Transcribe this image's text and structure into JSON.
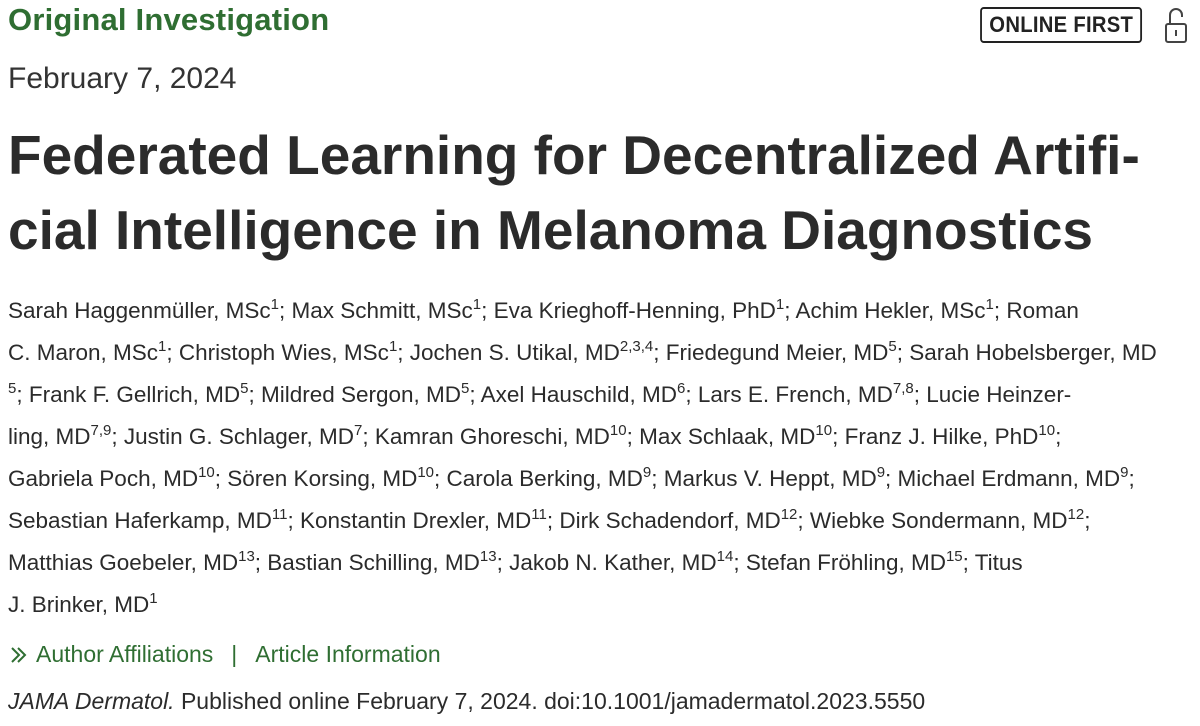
{
  "header": {
    "section_label": "Original Investigation",
    "badge": "ONLINE FIRST",
    "lock_icon": "open-lock-icon",
    "accent_color": "#2f6e32"
  },
  "publication_date": "February 7, 2024",
  "title": {
    "line1": "Federated Learning for Decentralized Artifi-",
    "line2": "cial Intelligence in Melanoma Diagnostics"
  },
  "authors": {
    "l1": {
      "a1": "Sarah Haggenmüller, MSc",
      "s1": "1",
      "a2": "; Max Schmitt, MSc",
      "s2": "1",
      "a3": "; Eva Krieghoff-Henning, PhD",
      "s3": "1",
      "a4": "; Achim Hekler, MSc",
      "s4": "1",
      "a5": "; Roman"
    },
    "l2": {
      "a1": "C. Maron, MSc",
      "s1": "1",
      "a2": "; Christoph Wies, MSc",
      "s2": "1",
      "a3": "; Jochen S. Utikal, MD",
      "s3": "2,3,4",
      "a4": "; Friedegund Meier, MD",
      "s4": "5",
      "a5": "; Sarah Hobelsberger, MD"
    },
    "l3": {
      "s0": "5",
      "a1": "; Frank F. Gellrich, MD",
      "s1": "5",
      "a2": "; Mildred Sergon, MD",
      "s2": "5",
      "a3": "; Axel Hauschild, MD",
      "s3": "6",
      "a4": "; Lars E. French, MD",
      "s4": "7,8",
      "a5": "; Lucie Heinzer-"
    },
    "l4": {
      "a1": "ling, MD",
      "s1": "7,9",
      "a2": "; Justin G. Schlager, MD",
      "s2": "7",
      "a3": "; Kamran Ghoreschi, MD",
      "s3": "10",
      "a4": "; Max Schlaak, MD",
      "s4": "10",
      "a5": "; Franz J. Hilke, PhD",
      "s5": "10",
      "a6": ";"
    },
    "l5": {
      "a1": "Gabriela Poch, MD",
      "s1": "10",
      "a2": "; Sören Korsing, MD",
      "s2": "10",
      "a3": "; Carola Berking, MD",
      "s3": "9",
      "a4": "; Markus V. Heppt, MD",
      "s4": "9",
      "a5": "; Michael Erdmann, MD",
      "s5": "9",
      "a6": ";"
    },
    "l6": {
      "a1": "Sebastian Haferkamp, MD",
      "s1": "11",
      "a2": "; Konstantin Drexler, MD",
      "s2": "11",
      "a3": "; Dirk Schadendorf, MD",
      "s3": "12",
      "a4": "; Wiebke Sondermann, MD",
      "s4": "12",
      "a5": ";"
    },
    "l7": {
      "a1": "Matthias Goebeler, MD",
      "s1": "13",
      "a2": "; Bastian Schilling, MD",
      "s2": "13",
      "a3": "; Jakob N. Kather, MD",
      "s3": "14",
      "a4": "; Stefan Fröhling, MD",
      "s4": "15",
      "a5": "; Titus"
    },
    "l8": {
      "a1": "J. Brinker, MD",
      "s1": "1"
    }
  },
  "links": {
    "chevron_icon": "double-chevron-right-icon",
    "author_affiliations": "Author Affiliations",
    "separator": "|",
    "article_information": "Article Information"
  },
  "citation": {
    "journal": "JAMA Dermatol.",
    "text": " Published online February 7, 2024. doi:10.1001/jamadermatol.2023.5550"
  }
}
